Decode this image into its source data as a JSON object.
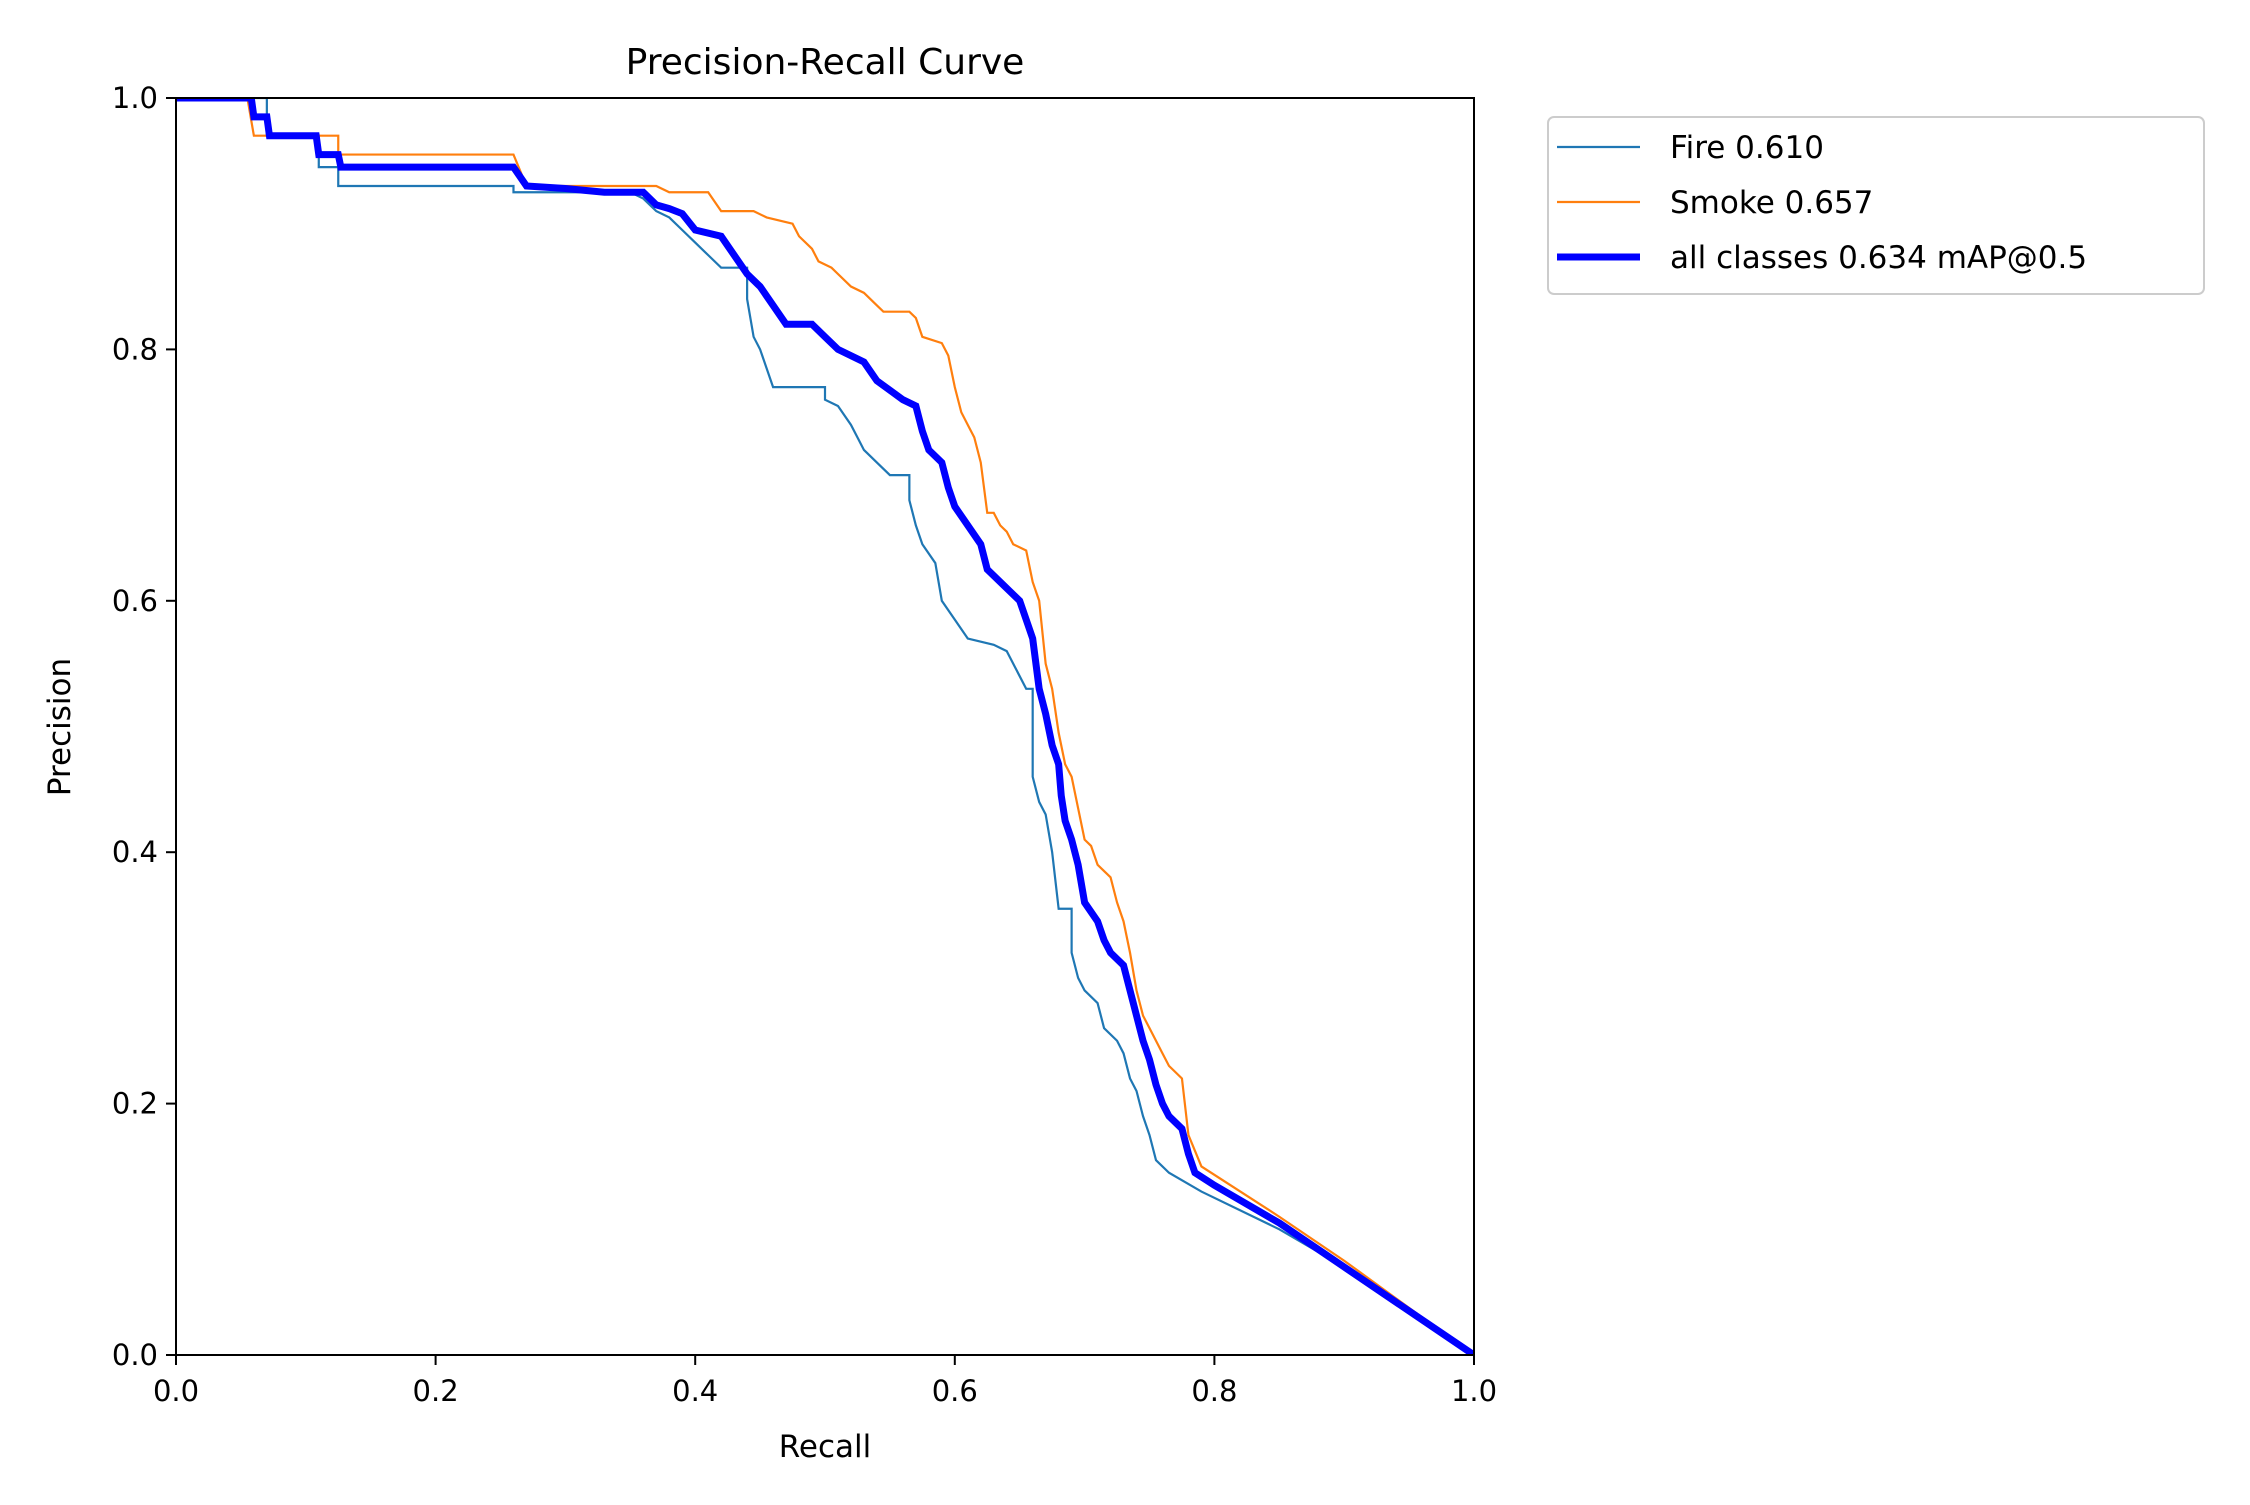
{
  "chart_data": {
    "type": "line",
    "title": "Precision-Recall Curve",
    "xlabel": "Recall",
    "ylabel": "Precision",
    "xlim": [
      0.0,
      1.0
    ],
    "ylim": [
      0.0,
      1.0
    ],
    "xticks": [
      "0.0",
      "0.2",
      "0.4",
      "0.6",
      "0.8",
      "1.0"
    ],
    "yticks": [
      "0.0",
      "0.2",
      "0.4",
      "0.6",
      "0.8",
      "1.0"
    ],
    "grid": false,
    "legend_position": "outside-top-right",
    "series": [
      {
        "name": "Fire",
        "legend_label": "Fire 0.610",
        "ap": 0.61,
        "color": "#1f77b4",
        "weight": "thin",
        "points": [
          [
            0.0,
            1.0
          ],
          [
            0.07,
            1.0
          ],
          [
            0.07,
            0.97
          ],
          [
            0.11,
            0.97
          ],
          [
            0.11,
            0.945
          ],
          [
            0.125,
            0.945
          ],
          [
            0.125,
            0.93
          ],
          [
            0.26,
            0.93
          ],
          [
            0.26,
            0.925
          ],
          [
            0.35,
            0.925
          ],
          [
            0.36,
            0.92
          ],
          [
            0.37,
            0.91
          ],
          [
            0.38,
            0.905
          ],
          [
            0.39,
            0.895
          ],
          [
            0.4,
            0.885
          ],
          [
            0.41,
            0.875
          ],
          [
            0.42,
            0.865
          ],
          [
            0.44,
            0.865
          ],
          [
            0.44,
            0.84
          ],
          [
            0.445,
            0.81
          ],
          [
            0.45,
            0.8
          ],
          [
            0.455,
            0.785
          ],
          [
            0.46,
            0.77
          ],
          [
            0.5,
            0.77
          ],
          [
            0.5,
            0.76
          ],
          [
            0.51,
            0.755
          ],
          [
            0.52,
            0.74
          ],
          [
            0.525,
            0.73
          ],
          [
            0.53,
            0.72
          ],
          [
            0.54,
            0.71
          ],
          [
            0.55,
            0.7
          ],
          [
            0.565,
            0.7
          ],
          [
            0.565,
            0.68
          ],
          [
            0.57,
            0.66
          ],
          [
            0.575,
            0.645
          ],
          [
            0.585,
            0.63
          ],
          [
            0.59,
            0.6
          ],
          [
            0.6,
            0.585
          ],
          [
            0.61,
            0.57
          ],
          [
            0.63,
            0.565
          ],
          [
            0.64,
            0.56
          ],
          [
            0.655,
            0.53
          ],
          [
            0.66,
            0.53
          ],
          [
            0.66,
            0.46
          ],
          [
            0.665,
            0.44
          ],
          [
            0.67,
            0.43
          ],
          [
            0.675,
            0.4
          ],
          [
            0.68,
            0.355
          ],
          [
            0.69,
            0.355
          ],
          [
            0.69,
            0.32
          ],
          [
            0.695,
            0.3
          ],
          [
            0.7,
            0.29
          ],
          [
            0.71,
            0.28
          ],
          [
            0.715,
            0.26
          ],
          [
            0.725,
            0.25
          ],
          [
            0.73,
            0.24
          ],
          [
            0.735,
            0.22
          ],
          [
            0.74,
            0.21
          ],
          [
            0.745,
            0.19
          ],
          [
            0.75,
            0.175
          ],
          [
            0.755,
            0.155
          ],
          [
            0.765,
            0.145
          ],
          [
            0.79,
            0.13
          ],
          [
            0.85,
            0.1
          ],
          [
            0.9,
            0.07
          ],
          [
            1.0,
            0.0
          ]
        ]
      },
      {
        "name": "Smoke",
        "legend_label": "Smoke 0.657",
        "ap": 0.657,
        "color": "#ff7f0e",
        "weight": "thin",
        "points": [
          [
            0.0,
            1.0
          ],
          [
            0.055,
            1.0
          ],
          [
            0.06,
            0.97
          ],
          [
            0.08,
            0.97
          ],
          [
            0.08,
            0.97
          ],
          [
            0.125,
            0.97
          ],
          [
            0.125,
            0.955
          ],
          [
            0.26,
            0.955
          ],
          [
            0.27,
            0.93
          ],
          [
            0.3,
            0.93
          ],
          [
            0.37,
            0.93
          ],
          [
            0.38,
            0.925
          ],
          [
            0.41,
            0.925
          ],
          [
            0.42,
            0.91
          ],
          [
            0.445,
            0.91
          ],
          [
            0.455,
            0.905
          ],
          [
            0.475,
            0.9
          ],
          [
            0.48,
            0.89
          ],
          [
            0.49,
            0.88
          ],
          [
            0.495,
            0.87
          ],
          [
            0.505,
            0.865
          ],
          [
            0.51,
            0.86
          ],
          [
            0.52,
            0.85
          ],
          [
            0.53,
            0.845
          ],
          [
            0.54,
            0.835
          ],
          [
            0.545,
            0.83
          ],
          [
            0.565,
            0.83
          ],
          [
            0.57,
            0.825
          ],
          [
            0.575,
            0.81
          ],
          [
            0.59,
            0.805
          ],
          [
            0.595,
            0.795
          ],
          [
            0.6,
            0.77
          ],
          [
            0.605,
            0.75
          ],
          [
            0.61,
            0.74
          ],
          [
            0.615,
            0.73
          ],
          [
            0.62,
            0.71
          ],
          [
            0.625,
            0.67
          ],
          [
            0.63,
            0.67
          ],
          [
            0.635,
            0.66
          ],
          [
            0.64,
            0.655
          ],
          [
            0.645,
            0.645
          ],
          [
            0.655,
            0.64
          ],
          [
            0.66,
            0.615
          ],
          [
            0.665,
            0.6
          ],
          [
            0.67,
            0.55
          ],
          [
            0.675,
            0.53
          ],
          [
            0.68,
            0.495
          ],
          [
            0.685,
            0.47
          ],
          [
            0.69,
            0.46
          ],
          [
            0.695,
            0.435
          ],
          [
            0.7,
            0.41
          ],
          [
            0.705,
            0.405
          ],
          [
            0.71,
            0.39
          ],
          [
            0.715,
            0.385
          ],
          [
            0.72,
            0.38
          ],
          [
            0.725,
            0.36
          ],
          [
            0.73,
            0.345
          ],
          [
            0.735,
            0.32
          ],
          [
            0.74,
            0.29
          ],
          [
            0.745,
            0.27
          ],
          [
            0.75,
            0.26
          ],
          [
            0.76,
            0.24
          ],
          [
            0.765,
            0.23
          ],
          [
            0.775,
            0.22
          ],
          [
            0.78,
            0.175
          ],
          [
            0.79,
            0.15
          ],
          [
            0.85,
            0.11
          ],
          [
            0.9,
            0.075
          ],
          [
            1.0,
            0.0
          ]
        ]
      },
      {
        "name": "all classes",
        "legend_label": "all classes 0.634 mAP@0.5",
        "ap": 0.634,
        "color": "#0000ff",
        "weight": "thick",
        "points": [
          [
            0.0,
            1.0
          ],
          [
            0.058,
            1.0
          ],
          [
            0.06,
            0.985
          ],
          [
            0.07,
            0.985
          ],
          [
            0.072,
            0.97
          ],
          [
            0.108,
            0.97
          ],
          [
            0.11,
            0.955
          ],
          [
            0.125,
            0.955
          ],
          [
            0.127,
            0.945
          ],
          [
            0.13,
            0.945
          ],
          [
            0.26,
            0.945
          ],
          [
            0.27,
            0.93
          ],
          [
            0.3,
            0.928
          ],
          [
            0.33,
            0.925
          ],
          [
            0.36,
            0.925
          ],
          [
            0.37,
            0.915
          ],
          [
            0.38,
            0.912
          ],
          [
            0.39,
            0.908
          ],
          [
            0.4,
            0.895
          ],
          [
            0.42,
            0.89
          ],
          [
            0.43,
            0.875
          ],
          [
            0.44,
            0.86
          ],
          [
            0.45,
            0.85
          ],
          [
            0.46,
            0.835
          ],
          [
            0.47,
            0.82
          ],
          [
            0.49,
            0.82
          ],
          [
            0.5,
            0.81
          ],
          [
            0.51,
            0.8
          ],
          [
            0.53,
            0.79
          ],
          [
            0.54,
            0.775
          ],
          [
            0.56,
            0.76
          ],
          [
            0.57,
            0.755
          ],
          [
            0.575,
            0.735
          ],
          [
            0.58,
            0.72
          ],
          [
            0.59,
            0.71
          ],
          [
            0.595,
            0.69
          ],
          [
            0.6,
            0.675
          ],
          [
            0.61,
            0.66
          ],
          [
            0.62,
            0.645
          ],
          [
            0.625,
            0.625
          ],
          [
            0.64,
            0.61
          ],
          [
            0.65,
            0.6
          ],
          [
            0.655,
            0.585
          ],
          [
            0.66,
            0.57
          ],
          [
            0.665,
            0.53
          ],
          [
            0.67,
            0.51
          ],
          [
            0.675,
            0.485
          ],
          [
            0.68,
            0.47
          ],
          [
            0.682,
            0.445
          ],
          [
            0.685,
            0.425
          ],
          [
            0.69,
            0.41
          ],
          [
            0.695,
            0.39
          ],
          [
            0.7,
            0.36
          ],
          [
            0.71,
            0.345
          ],
          [
            0.715,
            0.33
          ],
          [
            0.72,
            0.32
          ],
          [
            0.73,
            0.31
          ],
          [
            0.735,
            0.29
          ],
          [
            0.74,
            0.27
          ],
          [
            0.745,
            0.25
          ],
          [
            0.75,
            0.235
          ],
          [
            0.755,
            0.215
          ],
          [
            0.76,
            0.2
          ],
          [
            0.765,
            0.19
          ],
          [
            0.775,
            0.18
          ],
          [
            0.78,
            0.16
          ],
          [
            0.785,
            0.145
          ],
          [
            0.8,
            0.135
          ],
          [
            0.85,
            0.105
          ],
          [
            0.9,
            0.07
          ],
          [
            0.95,
            0.035
          ],
          [
            1.0,
            0.0
          ]
        ]
      }
    ]
  }
}
